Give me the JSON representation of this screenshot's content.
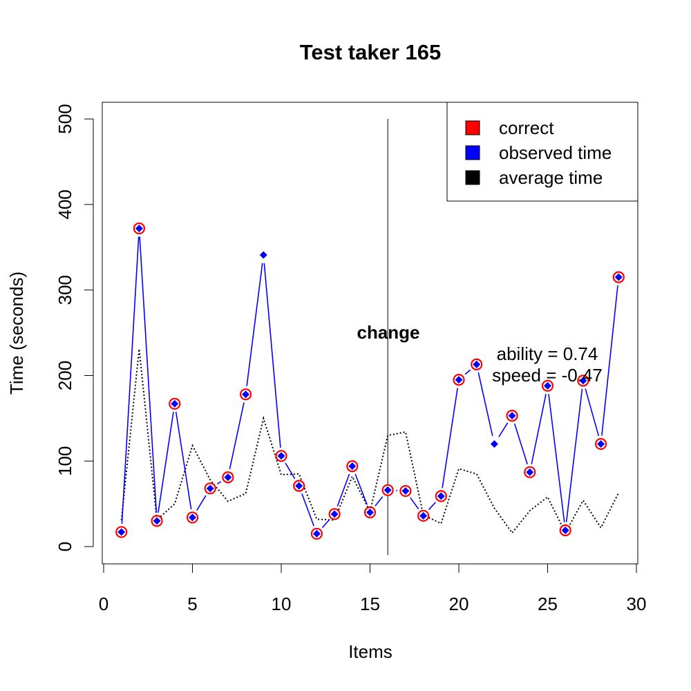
{
  "chart_data": {
    "type": "line",
    "title": "Test taker 165",
    "xlabel": "Items",
    "ylabel": "Time (seconds)",
    "xlim": [
      0,
      30
    ],
    "ylim": [
      0,
      500
    ],
    "x_ticks": [
      0,
      5,
      10,
      15,
      20,
      25,
      30
    ],
    "y_ticks": [
      0,
      100,
      200,
      300,
      400,
      500
    ],
    "x_tick_labels": [
      "0",
      "5",
      "10",
      "15",
      "20",
      "25",
      "30"
    ],
    "y_tick_labels": [
      "0",
      "100",
      "200",
      "300",
      "400",
      "500"
    ],
    "grid": false,
    "legend_position": "top-right",
    "legend": [
      {
        "label": "correct",
        "color": "#ff0000"
      },
      {
        "label": "observed time",
        "color": "#0000ff"
      },
      {
        "label": "average time",
        "color": "#000000"
      }
    ],
    "x": [
      1,
      2,
      3,
      4,
      5,
      6,
      7,
      8,
      9,
      10,
      11,
      12,
      13,
      14,
      15,
      16,
      17,
      18,
      19,
      20,
      21,
      22,
      23,
      24,
      25,
      26,
      27,
      28,
      29
    ],
    "series": [
      {
        "name": "observed time",
        "color": "#0000ff",
        "style": "solid",
        "values": [
          17,
          372,
          30,
          167,
          34,
          68,
          81,
          178,
          341,
          106,
          71,
          15,
          38,
          94,
          40,
          66,
          65,
          36,
          59,
          195,
          213,
          120,
          153,
          87,
          188,
          19,
          194,
          120,
          315
        ]
      },
      {
        "name": "average time",
        "color": "#000000",
        "style": "dotted",
        "values": [
          31,
          231,
          31,
          50,
          118,
          78,
          53,
          62,
          150,
          84,
          85,
          32,
          31,
          82,
          41,
          130,
          134,
          37,
          27,
          91,
          85,
          45,
          16,
          42,
          58,
          16,
          54,
          22,
          63
        ]
      }
    ],
    "correct": [
      true,
      true,
      true,
      true,
      true,
      true,
      true,
      true,
      false,
      true,
      true,
      true,
      true,
      true,
      true,
      true,
      true,
      true,
      true,
      true,
      true,
      false,
      true,
      true,
      true,
      true,
      true,
      true,
      true
    ],
    "change_line_x": 16,
    "change_line_range": [
      -10,
      500
    ],
    "annotations": {
      "change": "change",
      "ability": "ability = 0.74",
      "speed": "speed = -0.47"
    }
  }
}
